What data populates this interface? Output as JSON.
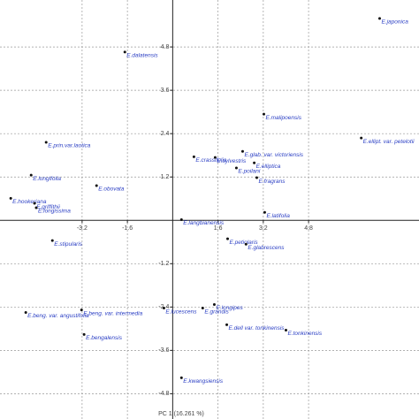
{
  "chart_data": {
    "type": "scatter",
    "xlabel": "PC 1 (16.261 %)",
    "color": "#2b3fc4",
    "labels": [
      "E.japonica",
      "E.dalatensis",
      "E.malipoensis",
      "E.ellipt. var. petelotii",
      "E.prin.var.laotica",
      "E.glab. var. victoriensis",
      "E.crassifolia",
      "E.sylvestris",
      "E.elliptica",
      "E.poilani",
      "E.fragrans",
      "E.longifolia",
      "E.obovata",
      "E.hookeriana",
      "E.griffithii",
      "E.longissima",
      "E.latifolia",
      "E.langbianensis",
      "E.stipularis",
      "E.petiolaris",
      "E.glabrescens",
      "E.lucescens",
      "E.grandis",
      "E.longipes",
      "E.beng. var. intermedia",
      "E.beng. var. angustifolia",
      "E.dell var. tonkinensis",
      "E.tonkinensis",
      "E.bengalensis",
      "E.kwangsiensis"
    ],
    "x": [
      7.31,
      -1.69,
      3.22,
      6.66,
      -4.47,
      2.47,
      0.75,
      1.5,
      2.88,
      2.25,
      2.97,
      -5.0,
      -2.69,
      -5.72,
      -4.88,
      -4.82,
      3.25,
      0.31,
      -4.25,
      1.94,
      2.59,
      -0.31,
      1.06,
      1.47,
      -3.22,
      -5.19,
      1.91,
      4.0,
      -3.13,
      0.31
    ],
    "y": [
      5.59,
      4.66,
      2.94,
      2.28,
      2.16,
      1.91,
      1.76,
      1.74,
      1.59,
      1.45,
      1.18,
      1.25,
      0.96,
      0.61,
      0.47,
      0.35,
      0.22,
      0.02,
      -0.56,
      -0.51,
      -0.66,
      -2.43,
      -2.43,
      -2.33,
      -2.48,
      -2.55,
      -2.89,
      -3.04,
      -3.16,
      -4.36
    ],
    "xlim": [
      -6.1,
      8.7
    ],
    "ylim": [
      -5.5,
      6.1
    ],
    "xticks": [
      -3.2,
      -1.6,
      1.6,
      3.2,
      4.8
    ],
    "yticks": [
      4.8,
      3.6,
      2.4,
      1.2,
      -1.2,
      -2.4,
      -3.6,
      -4.8
    ],
    "grid": true
  }
}
